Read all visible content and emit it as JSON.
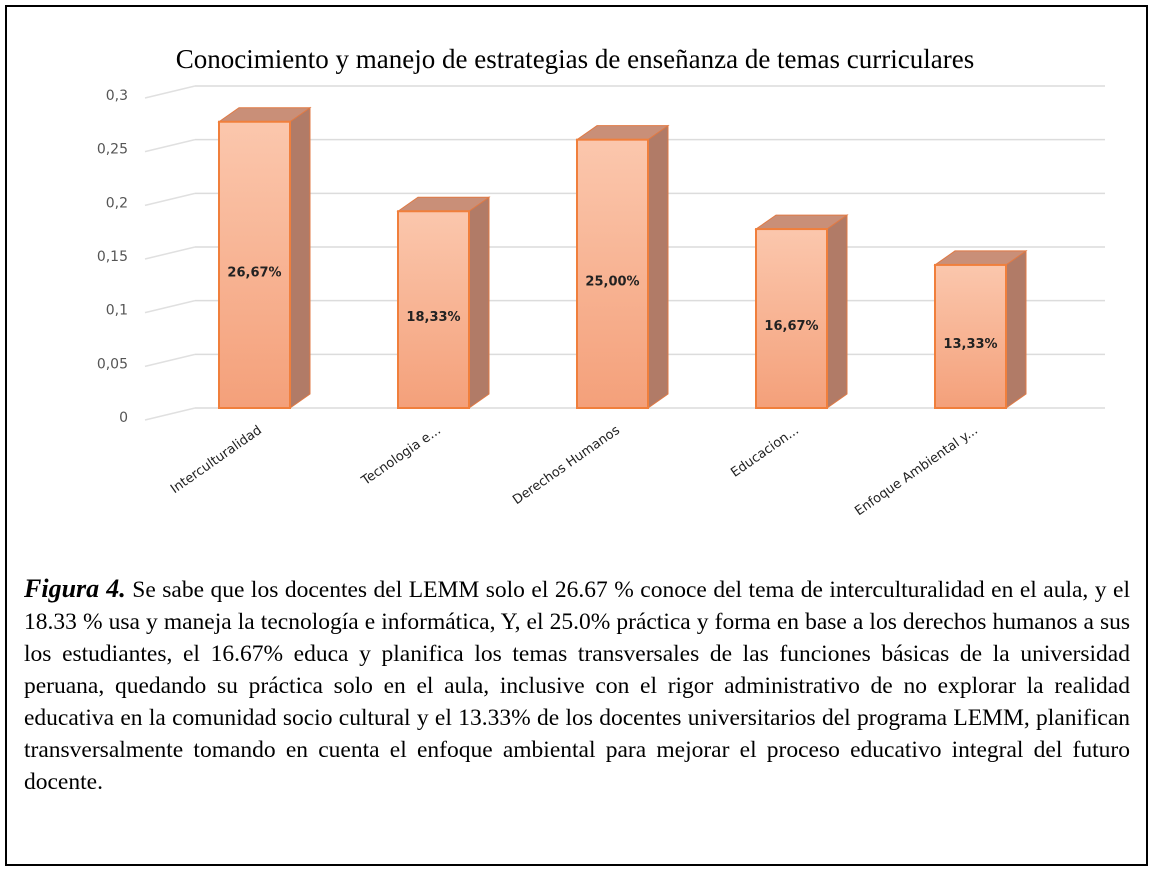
{
  "chart_data": {
    "type": "bar",
    "title": "Conocimiento y manejo de estrategias de enseñanza de temas curriculares",
    "categories": [
      "Interculturalidad",
      "Tecnologia e...",
      "Derechos Humanos",
      "Educacion...",
      "Enfoque Ambiental y..."
    ],
    "values": [
      0.2667,
      0.1833,
      0.25,
      0.1667,
      0.1333
    ],
    "value_labels": [
      "26,67%",
      "18,33%",
      "25,00%",
      "16,67%",
      "13,33%"
    ],
    "color": "#f6ab87",
    "ylim": [
      0,
      0.3
    ],
    "yticks": [
      0,
      {
        "value": 0.05,
        "label": "0,05"
      },
      {
        "value": 0.1,
        "label": "0,1"
      },
      {
        "value": 0.15,
        "label": "0,15"
      },
      {
        "value": 0.2,
        "label": "0,2"
      },
      {
        "value": 0.25,
        "label": "0,25"
      },
      {
        "value": 0.3,
        "label": "0,3"
      }
    ],
    "grid": true
  },
  "caption": {
    "label": "Figura 4.",
    "text": "Se sabe que los docentes del LEMM solo el 26.67 % conoce del tema de interculturalidad en el aula, y el 18.33 % usa y maneja la tecnología e informática, Y, el 25.0% práctica y forma en base a los derechos humanos a sus los estudiantes, el 16.67% educa y planifica los temas transversales de las funciones básicas de la universidad peruana, quedando su práctica solo en el aula, inclusive con el rigor administrativo de no explorar la realidad educativa en la comunidad socio cultural  y el 13.33% de los docentes universitarios del programa LEMM, planifican transversalmente tomando en cuenta el enfoque ambiental para mejorar el proceso educativo integral del futuro docente."
  }
}
